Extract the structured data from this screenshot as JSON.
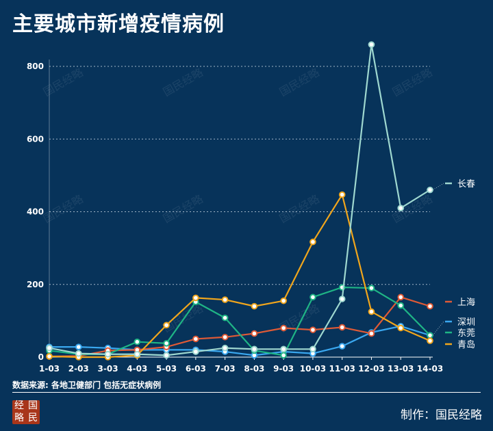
{
  "header": {
    "title": "主要城市新增疫情病例"
  },
  "footer": {
    "source": "数据来源: 各地卫健部门 包括无症状病例",
    "logo_chars": [
      "经",
      "国",
      "略",
      "民"
    ],
    "credit": "制作：国民经略",
    "watermark": "国民经略"
  },
  "colors": {
    "background": "#07335a",
    "grid": "#c9d6e3"
  },
  "chart_data": {
    "type": "line",
    "title": "主要城市新增疫情病例",
    "xlabel": "",
    "ylabel": "",
    "x": [
      "1-03",
      "2-03",
      "3-03",
      "4-03",
      "5-03",
      "6-03",
      "7-03",
      "8-03",
      "9-03",
      "10-03",
      "11-03",
      "12-03",
      "13-03",
      "14-03"
    ],
    "yticks": [
      0,
      200,
      400,
      600,
      800
    ],
    "ylim": [
      0,
      800
    ],
    "grid": true,
    "legend_position": "right",
    "series": [
      {
        "name": "长春",
        "color": "#9fd8d0",
        "values": [
          25,
          10,
          8,
          8,
          5,
          15,
          25,
          22,
          22,
          22,
          160,
          860,
          410,
          460
        ]
      },
      {
        "name": "上海",
        "color": "#e05a36",
        "values": [
          2,
          3,
          18,
          20,
          28,
          50,
          55,
          65,
          80,
          75,
          82,
          65,
          165,
          140
        ]
      },
      {
        "name": "深圳",
        "color": "#3aa8f0",
        "values": [
          28,
          28,
          25,
          20,
          20,
          20,
          15,
          5,
          15,
          10,
          30,
          68,
          85,
          60
        ]
      },
      {
        "name": "东莞",
        "color": "#1fb585",
        "values": [
          18,
          8,
          8,
          42,
          38,
          152,
          108,
          18,
          5,
          165,
          192,
          190,
          142,
          60
        ]
      },
      {
        "name": "青岛",
        "color": "#f1a61c",
        "values": [
          2,
          0,
          0,
          5,
          88,
          163,
          158,
          140,
          155,
          317,
          447,
          125,
          80,
          45
        ]
      }
    ]
  }
}
